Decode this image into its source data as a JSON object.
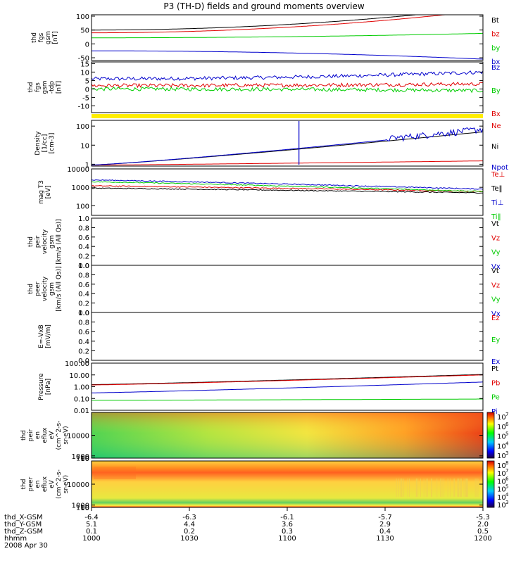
{
  "title": "P3 (TH-D) fields and ground moments overview",
  "chart_data": {
    "type": "line",
    "x_axis": {
      "rows": [
        {
          "name": "thd_X-GSM",
          "values": [
            "-6.4",
            "-6.3",
            "-6.1",
            "-5.7",
            "-5.3"
          ]
        },
        {
          "name": "thd_Y-GSM",
          "values": [
            "5.1",
            "4.4",
            "3.6",
            "2.9",
            "2.0"
          ]
        },
        {
          "name": "thd_Z-GSM",
          "values": [
            "0.1",
            "0.2",
            "0.3",
            "0.4",
            "0.5"
          ]
        },
        {
          "name": "hhmm",
          "values": [
            "1000",
            "1030",
            "1100",
            "1130",
            "1200"
          ]
        }
      ],
      "date": "2008 Apr 30"
    },
    "panels": [
      {
        "ylabel": [
          "thd",
          "fgs",
          "gsm",
          "[nT]"
        ],
        "yticks": [
          "100",
          "50",
          "0",
          "-50"
        ],
        "ylim": [
          -60,
          105
        ],
        "series": [
          {
            "name": "Bt",
            "color": "#000000",
            "start": 50,
            "end": 130
          },
          {
            "name": "bz",
            "color": "#e00000",
            "start": 40,
            "end": 120
          },
          {
            "name": "by",
            "color": "#00cc00",
            "start": 22,
            "end": 38
          },
          {
            "name": "bx",
            "color": "#0000cc",
            "start": -25,
            "end": -55
          }
        ]
      },
      {
        "ylabel": [
          "thd",
          "fgs",
          "gsm",
          "-tdp",
          "[nT]"
        ],
        "yticks": [
          "15",
          "10",
          "5",
          "0",
          "-5",
          "-10"
        ],
        "ylim": [
          -14,
          16
        ],
        "series": [
          {
            "name": "Bz",
            "color": "#0000cc",
            "start": 6,
            "end": 10
          },
          {
            "name": "By",
            "color": "#00cc00",
            "start": 0,
            "end": -1
          },
          {
            "name": "Bx",
            "color": "#e00000",
            "start": 2,
            "end": 3
          }
        ]
      },
      {
        "ylabel": [
          "Density",
          "[1/cc]",
          "[cm-3]"
        ],
        "yticks": [
          "100",
          "10",
          "1"
        ],
        "ylim": [
          0.8,
          200
        ],
        "log": true,
        "series": [
          {
            "name": "Ne",
            "color": "#e00000",
            "start": 0.9,
            "end": 1.5
          },
          {
            "name": "Ni",
            "color": "#000000",
            "start": 0.9,
            "end": 50
          },
          {
            "name": "Npot",
            "color": "#0000cc",
            "start": 0.9,
            "end": 60
          }
        ]
      },
      {
        "ylabel": [
          "mag T3",
          "[eV]"
        ],
        "yticks": [
          "10000",
          "1000",
          "100"
        ],
        "ylim": [
          30,
          10000
        ],
        "log": true,
        "series": [
          {
            "name": "Te⊥",
            "color": "#e00000",
            "start": 1200,
            "end": 600
          },
          {
            "name": "Te‖",
            "color": "#000000",
            "start": 900,
            "end": 500
          },
          {
            "name": "Ti⊥",
            "color": "#0000cc",
            "start": 2500,
            "end": 800
          },
          {
            "name": "Ti‖",
            "color": "#00cc00",
            "start": 2000,
            "end": 600
          }
        ]
      },
      {
        "ylabel": [
          "thd",
          "peir",
          "velocity",
          "gsm",
          "[km/s (All Qs)]"
        ],
        "yticks": [
          "1.0",
          "0.8",
          "0.6",
          "0.4",
          "0.2",
          "0.0"
        ],
        "ylim": [
          0,
          1
        ],
        "series": [
          {
            "name": "Vt",
            "color": "#000000"
          },
          {
            "name": "Vz",
            "color": "#e00000"
          },
          {
            "name": "Vy",
            "color": "#00cc00"
          },
          {
            "name": "Vx",
            "color": "#0000cc"
          }
        ]
      },
      {
        "ylabel": [
          "thd",
          "peer",
          "velocity",
          "gsm",
          "[km/s (All Qs)]"
        ],
        "yticks": [
          "1.0",
          "0.8",
          "0.6",
          "0.4",
          "0.2",
          "0.0"
        ],
        "ylim": [
          0,
          1
        ],
        "series": [
          {
            "name": "Vt",
            "color": "#000000"
          },
          {
            "name": "Vz",
            "color": "#e00000"
          },
          {
            "name": "Vy",
            "color": "#00cc00"
          },
          {
            "name": "Vx",
            "color": "#0000cc"
          }
        ]
      },
      {
        "ylabel": [
          "E=-VxB",
          "[mV/m]"
        ],
        "yticks": [
          "1.0",
          "0.8",
          "0.6",
          "0.4",
          "0.2",
          "0.0"
        ],
        "ylim": [
          0,
          1
        ],
        "series": [
          {
            "name": "Ez",
            "color": "#e00000"
          },
          {
            "name": "Ey",
            "color": "#00cc00"
          },
          {
            "name": "Ex",
            "color": "#0000cc"
          }
        ]
      },
      {
        "ylabel": [
          "Pressure",
          "[nPa]"
        ],
        "yticks": [
          "100.00",
          "10.00",
          "1.00",
          "0.10",
          "0.01"
        ],
        "ylim": [
          0.01,
          100
        ],
        "log": true,
        "series": [
          {
            "name": "Pt",
            "color": "#000000",
            "start": 1.5,
            "end": 11
          },
          {
            "name": "Pb",
            "color": "#e00000",
            "start": 1.4,
            "end": 10
          },
          {
            "name": "Pe",
            "color": "#00cc00",
            "start": 0.07,
            "end": 0.09
          },
          {
            "name": "Pi",
            "color": "#0000cc",
            "start": 0.3,
            "end": 2.5
          }
        ]
      },
      {
        "type": "spectrogram",
        "ylabel": [
          "thd",
          "peir",
          "en",
          "eflux",
          "eV",
          "(cm^2-s-",
          "sr-eV)"
        ],
        "yticks": [
          "10000",
          "1000",
          "100",
          "10"
        ],
        "ylim": [
          8,
          20000
        ],
        "colorbar": {
          "exponents": [
            "7",
            "6",
            "5",
            "4",
            "3"
          ]
        }
      },
      {
        "type": "spectrogram",
        "ylabel": [
          "thd",
          "peer",
          "en",
          "eflux",
          "eV",
          "(cm^2-s-",
          "sr-eV)"
        ],
        "yticks": [
          "10000",
          "1000",
          "100",
          "10"
        ],
        "ylim": [
          8,
          20000
        ],
        "colorbar": {
          "exponents": [
            "8",
            "7",
            "6",
            "5",
            "4",
            "3"
          ]
        }
      }
    ]
  }
}
